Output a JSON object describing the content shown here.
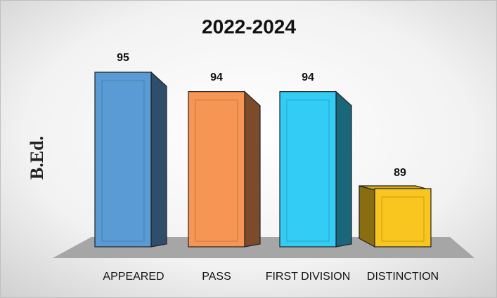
{
  "chart_data": {
    "type": "bar3d",
    "title": "2022-2024",
    "y_label": "B.Ed.",
    "categories": [
      "APPEARED",
      "PASS",
      "FIRST DIVISION",
      "DISTINCTION"
    ],
    "values": [
      95,
      94,
      94,
      89
    ],
    "colors": [
      "#5b9bd5",
      "#f79654",
      "#33ccf4",
      "#f8c61e"
    ],
    "ylim": [
      86,
      95
    ]
  }
}
